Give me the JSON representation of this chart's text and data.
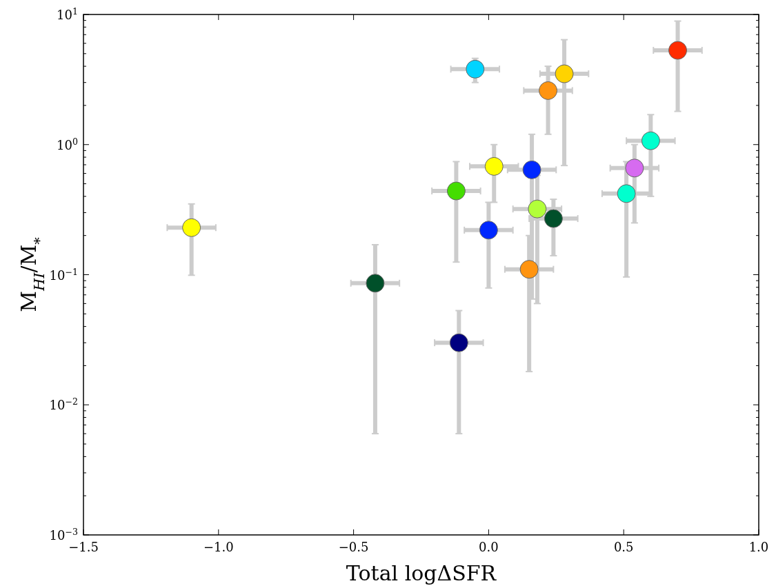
{
  "chart_data": {
    "type": "scatter",
    "xlabel": "Total logΔSFR",
    "ylabel": "M$_{HI}$/M$_{*}$",
    "log": "y",
    "grid": false,
    "marker": "circle",
    "xlim": [
      -1.5,
      1.0
    ],
    "ylim": [
      0.001,
      10
    ],
    "xticks": [
      {
        "value": -1.5,
        "label": "−1.5"
      },
      {
        "value": -1.0,
        "label": "−1.0"
      },
      {
        "value": -0.5,
        "label": "−0.5"
      },
      {
        "value": 0,
        "label": "0.0"
      },
      {
        "value": 0.5,
        "label": "0.5"
      },
      {
        "value": 1.0,
        "label": "1.0"
      }
    ],
    "yticks": [
      {
        "value": 0.001,
        "label": "10$^{−3}$"
      },
      {
        "value": 0.002,
        "label": null
      },
      {
        "value": 0.003,
        "label": null
      },
      {
        "value": 0.004,
        "label": null
      },
      {
        "value": 0.005,
        "label": null
      },
      {
        "value": 0.006,
        "label": null
      },
      {
        "value": 0.007,
        "label": null
      },
      {
        "value": 0.008,
        "label": null
      },
      {
        "value": 0.009,
        "label": null
      },
      {
        "value": 0.01,
        "label": "10$^{−2}$"
      },
      {
        "value": 0.02,
        "label": null
      },
      {
        "value": 0.03,
        "label": null
      },
      {
        "value": 0.04,
        "label": null
      },
      {
        "value": 0.05,
        "label": null
      },
      {
        "value": 0.06,
        "label": null
      },
      {
        "value": 0.07,
        "label": null
      },
      {
        "value": 0.08,
        "label": null
      },
      {
        "value": 0.09,
        "label": null
      },
      {
        "value": 0.1,
        "label": "10$^{−1}$"
      },
      {
        "value": 0.2,
        "label": null
      },
      {
        "value": 0.3,
        "label": null
      },
      {
        "value": 0.4,
        "label": null
      },
      {
        "value": 0.5,
        "label": null
      },
      {
        "value": 0.6,
        "label": null
      },
      {
        "value": 0.7,
        "label": null
      },
      {
        "value": 0.8,
        "label": null
      },
      {
        "value": 0.9,
        "label": null
      },
      {
        "value": 1,
        "label": "10$^{0}$"
      },
      {
        "value": 2,
        "label": null
      },
      {
        "value": 3,
        "label": null
      },
      {
        "value": 4,
        "label": null
      },
      {
        "value": 5,
        "label": null
      },
      {
        "value": 6,
        "label": null
      },
      {
        "value": 7,
        "label": null
      },
      {
        "value": 8,
        "label": null
      },
      {
        "value": 9,
        "label": null
      },
      {
        "value": 10,
        "label": "10$^{1}$"
      }
    ],
    "series": [
      {
        "x": [
          -1.1,
          -0.42,
          -0.11,
          -0.12,
          0.0,
          -0.05,
          0.02,
          0.16,
          0.18,
          0.24,
          0.15,
          0.22,
          0.28,
          0.7,
          0.6,
          0.54,
          0.51
        ],
        "values": [
          0.23,
          0.086,
          0.03,
          0.44,
          0.22,
          3.8,
          0.68,
          0.64,
          0.32,
          0.27,
          0.11,
          2.6,
          3.5,
          5.3,
          1.07,
          0.66,
          0.42
        ],
        "colors": [
          "#ffff00",
          "#00502a",
          "#000080",
          "#44dd00",
          "#0028ff",
          "#00d4ff",
          "#ffff00",
          "#0028ff",
          "#b2ff3a",
          "#00502a",
          "#ff9410",
          "#ff9410",
          "#ffd300",
          "#ff2c00",
          "#00ffce",
          "#d66bf0",
          "#00ffce"
        ],
        "errors": [
          [
            0.099,
            0.35
          ],
          [
            0.006,
            0.17
          ],
          [
            0.006,
            0.053
          ],
          [
            0.125,
            0.74
          ],
          [
            0.079,
            0.36
          ],
          [
            3.0,
            4.6
          ],
          [
            0.36,
            1.0
          ],
          [
            0.065,
            1.2
          ],
          [
            0.06,
            0.58
          ],
          [
            0.14,
            0.38
          ],
          [
            0.018,
            0.2
          ],
          [
            1.2,
            4.0
          ],
          [
            0.69,
            6.4
          ],
          [
            1.8,
            8.9
          ],
          [
            0.4,
            1.7
          ],
          [
            0.25,
            1.0
          ],
          [
            0.096,
            0.74
          ]
        ],
        "xerrors": [
          0.09,
          0.09,
          0.09,
          0.09,
          0.09,
          0.09,
          0.09,
          0.09,
          0.09,
          0.09,
          0.09,
          0.09,
          0.09,
          0.09,
          0.09,
          0.09,
          0.09
        ]
      }
    ]
  }
}
